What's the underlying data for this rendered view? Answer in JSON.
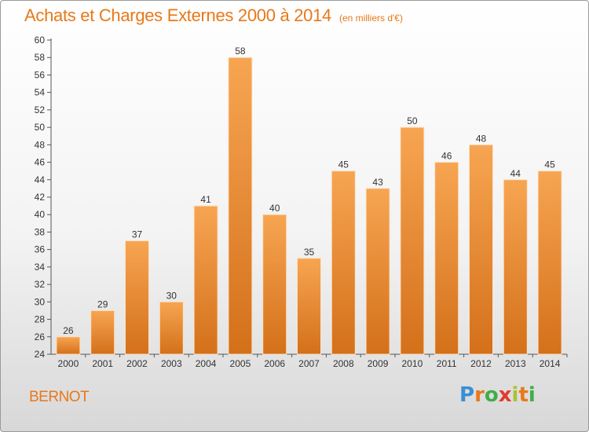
{
  "chart_data": {
    "type": "bar",
    "title": "Achats et Charges Externes 2000 à 2014",
    "subtitle": "(en milliers d'€)",
    "categories": [
      "2000",
      "2001",
      "2002",
      "2003",
      "2004",
      "2005",
      "2006",
      "2007",
      "2008",
      "2009",
      "2010",
      "2011",
      "2012",
      "2013",
      "2014"
    ],
    "values": [
      26,
      29,
      37,
      30,
      41,
      58,
      40,
      35,
      45,
      43,
      50,
      46,
      48,
      44,
      45
    ],
    "ylim": [
      24,
      60
    ],
    "ytick_step": 2,
    "xlabel": "",
    "ylabel": "",
    "grid": false,
    "bar_color_light": "#f7a552",
    "bar_color_dark": "#d4701a"
  },
  "footer": {
    "town": "BERNOT",
    "logo_letters": [
      "P",
      "r",
      "o",
      "x",
      "i",
      "t",
      "i"
    ]
  },
  "colors": {
    "accent": "#e8781a"
  }
}
